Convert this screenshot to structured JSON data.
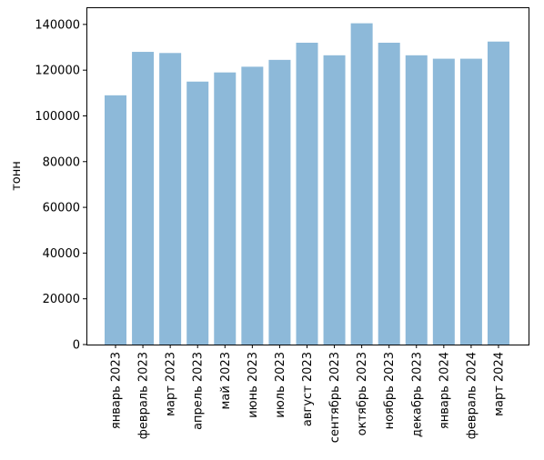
{
  "chart_data": {
    "type": "bar",
    "title": "",
    "xlabel": "",
    "ylabel": "тонн",
    "ylim": [
      0,
      147500
    ],
    "yticks": [
      0,
      20000,
      40000,
      60000,
      80000,
      100000,
      120000,
      140000
    ],
    "grid": false,
    "bar_color": "#8db9d9",
    "categories": [
      "январь 2023",
      "февраль 2023",
      "март 2023",
      "апрель 2023",
      "май 2023",
      "июнь 2023",
      "июль 2023",
      "август 2023",
      "сентябрь 2023",
      "октябрь 2023",
      "ноябрь 2023",
      "декабрь 2023",
      "январь 2024",
      "февраль 2024",
      "март 2024"
    ],
    "values": [
      109000,
      128000,
      127500,
      115000,
      119000,
      121500,
      124500,
      132000,
      126500,
      140500,
      132000,
      126500,
      125000,
      125000,
      132500
    ]
  }
}
